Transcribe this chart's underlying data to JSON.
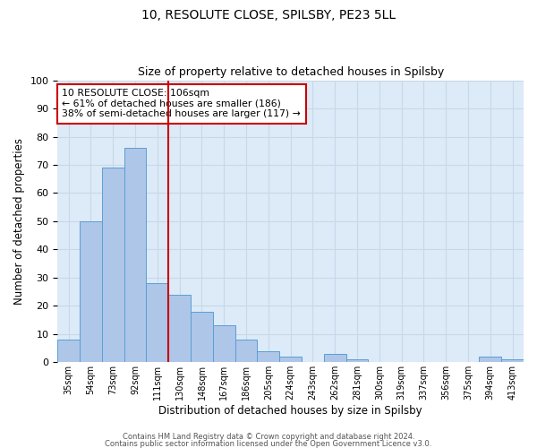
{
  "title": "10, RESOLUTE CLOSE, SPILSBY, PE23 5LL",
  "subtitle": "Size of property relative to detached houses in Spilsby",
  "xlabel": "Distribution of detached houses by size in Spilsby",
  "ylabel": "Number of detached properties",
  "bin_labels": [
    "35sqm",
    "54sqm",
    "73sqm",
    "92sqm",
    "111sqm",
    "130sqm",
    "148sqm",
    "167sqm",
    "186sqm",
    "205sqm",
    "224sqm",
    "243sqm",
    "262sqm",
    "281sqm",
    "300sqm",
    "319sqm",
    "337sqm",
    "356sqm",
    "375sqm",
    "394sqm",
    "413sqm"
  ],
  "bar_values": [
    8,
    50,
    69,
    76,
    28,
    24,
    18,
    13,
    8,
    4,
    2,
    0,
    3,
    1,
    0,
    0,
    0,
    0,
    0,
    2,
    1
  ],
  "bar_color": "#aec6e8",
  "bar_edge_color": "#5a9fd4",
  "grid_color": "#c8d8e8",
  "background_color": "#ddeaf8",
  "vline_x": 4.5,
  "vline_color": "#cc0000",
  "annotation_box_text": "10 RESOLUTE CLOSE: 106sqm\n← 61% of detached houses are smaller (186)\n38% of semi-detached houses are larger (117) →",
  "annotation_box_color": "#cc0000",
  "ylim": [
    0,
    100
  ],
  "yticks": [
    0,
    10,
    20,
    30,
    40,
    50,
    60,
    70,
    80,
    90,
    100
  ],
  "footer_line1": "Contains HM Land Registry data © Crown copyright and database right 2024.",
  "footer_line2": "Contains public sector information licensed under the Open Government Licence v3.0."
}
